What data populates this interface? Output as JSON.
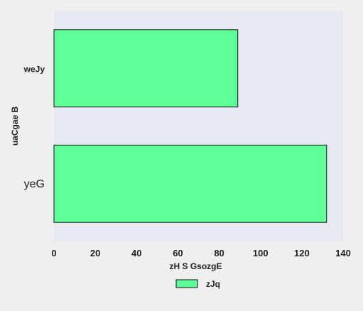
{
  "chart_data": {
    "type": "bar",
    "orientation": "horizontal",
    "categories": [
      "weJy",
      "yeG"
    ],
    "series": [
      {
        "name": "zJq",
        "values": [
          89,
          132
        ]
      }
    ],
    "xlabel": "zH S  GsozgE",
    "ylabel": "uaCgae B",
    "xlim": [
      0,
      140
    ],
    "xticks": [
      0,
      20,
      40,
      60,
      80,
      100,
      120,
      140
    ],
    "grid": false,
    "legend_position": "bottom-center",
    "colors": {
      "bar_fill": "#5fff99",
      "bar_edge": "#111111",
      "plot_background": "#e8e8f2",
      "figure_background": "#efefef"
    }
  }
}
